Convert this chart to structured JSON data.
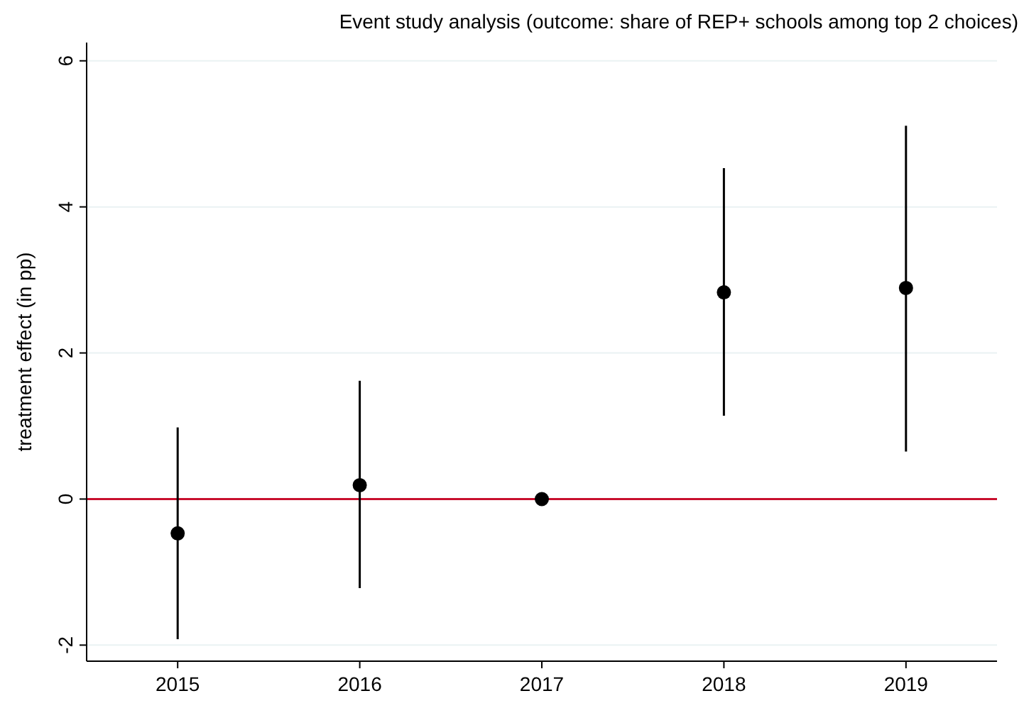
{
  "chart_data": {
    "type": "scatter",
    "title": "Event study analysis (outcome: share of REP+ schools among top 2 choices)",
    "ylabel": "treatment effect (in pp)",
    "x": [
      2015,
      2016,
      2017,
      2018,
      2019
    ],
    "series": [
      {
        "color": "#000000",
        "values": [
          -0.47,
          0.19,
          0,
          2.83,
          2.89
        ],
        "errors": [
          [
            -1.92,
            0.98
          ],
          [
            -1.22,
            1.62
          ],
          null,
          [
            1.14,
            4.53
          ],
          [
            0.65,
            5.11
          ]
        ]
      }
    ],
    "xlim": [
      2014.5,
      2019.5
    ],
    "xticks": [
      2015,
      2016,
      2017,
      2018,
      2019
    ],
    "ylim": [
      -2.22,
      6.25
    ],
    "yticks": [
      -2,
      0,
      2,
      4,
      6
    ],
    "ref_lines": [
      {
        "axis": "y",
        "value": 0,
        "color": "#c8102e"
      }
    ],
    "grid": "y",
    "marker": "circle"
  }
}
